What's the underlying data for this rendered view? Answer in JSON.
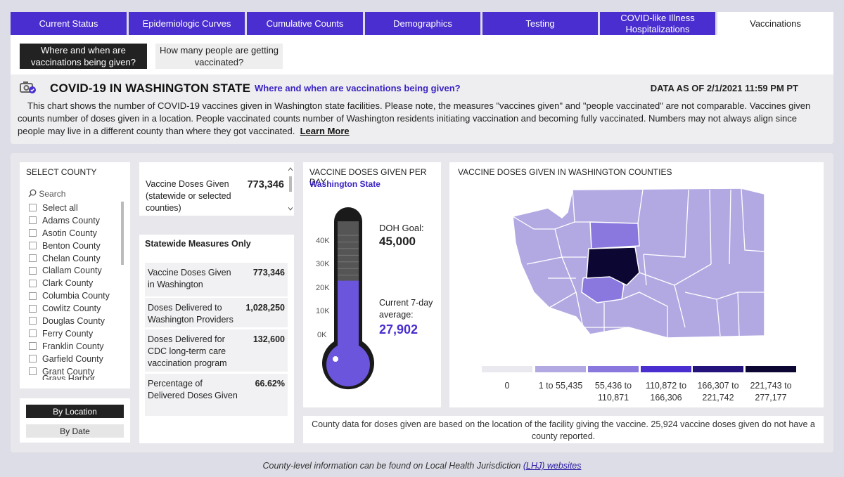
{
  "tabs": [
    {
      "label": "Current Status"
    },
    {
      "label": "Epidemiologic Curves"
    },
    {
      "label": "Cumulative Counts"
    },
    {
      "label": "Demographics"
    },
    {
      "label": "Testing"
    },
    {
      "label": "COVID-like Illness Hospitalizations"
    },
    {
      "label": "Vaccinations"
    }
  ],
  "subnav": {
    "where_label": "Where and when are vaccinations being given?",
    "how_many_label": "How many people are getting vaccinated?"
  },
  "header": {
    "title": "COVID-19 IN WASHINGTON STATE",
    "subtitle": "Where and when are vaccinations being given?",
    "as_of": "DATA AS OF 2/1/2021 11:59 PM PT",
    "description": "This chart shows the number of COVID-19 vaccines given in Washington state facilities. Please note, the measures \"vaccines given\" and \"people vaccinated\" are not comparable. Vaccines given counts number of doses given in a location. People vaccinated counts number of Washington residents initiating vaccination and becoming fully vaccinated. Numbers may not always align since people may live in a different county than where they got vaccinated.",
    "learn_more": "Learn More"
  },
  "county_select": {
    "title": "SELECT COUNTY",
    "search_placeholder": "Search",
    "items": [
      "Select all",
      "Adams County",
      "Asotin County",
      "Benton County",
      "Chelan County",
      "Clallam County",
      "Clark County",
      "Columbia County",
      "Cowlitz County",
      "Douglas County",
      "Ferry County",
      "Franklin County",
      "Garfield County",
      "Grant County",
      "Grays Harbor County"
    ]
  },
  "view_buttons": {
    "by_location": "By Location",
    "by_date": "By Date"
  },
  "doses_given": {
    "label": "Vaccine Doses Given (statewide or selected counties)",
    "value": "773,346"
  },
  "statewide": {
    "title": "Statewide Measures Only",
    "rows": [
      {
        "label": "Vaccine Doses Given in Washington",
        "value": "773,346"
      },
      {
        "label": "Doses Delivered to Washington Providers",
        "value": "1,028,250"
      },
      {
        "label": "Doses Delivered for CDC long-term care vaccination program",
        "value": "132,600"
      },
      {
        "label": "Percentage of Delivered Doses Given",
        "value": "66.62%"
      }
    ]
  },
  "thermometer": {
    "title": "VACCINE DOSES GIVEN PER DAY",
    "subtitle": "Washington State",
    "goal_label": "DOH Goal:",
    "goal_value": "45,000",
    "goal": 45000,
    "avg_label": "Current 7-day average:",
    "avg_value": "27,902",
    "current": 27902,
    "ticks": [
      "40K",
      "30K",
      "20K",
      "10K",
      "0K"
    ],
    "colors": {
      "fill": "#6a55dc",
      "tube": "#1a1a1a",
      "gray": "#555555"
    }
  },
  "map": {
    "title": "VACCINE DOSES GIVEN IN WASHINGTON COUNTIES",
    "legend": [
      {
        "label": "0",
        "color": "#e9e9ef"
      },
      {
        "label": "1 to 55,435",
        "color": "#b3a9e2"
      },
      {
        "label": "55,436 to 110,871",
        "color": "#8a78de"
      },
      {
        "label": "110,872 to 166,306",
        "color": "#4a2ecf"
      },
      {
        "label": "166,307 to 221,742",
        "color": "#24137a"
      },
      {
        "label": "221,743 to 277,177",
        "color": "#0c0633"
      }
    ],
    "note": "County data for doses given are based on the location of the facility giving the vaccine. 25,924 vaccine doses given do not have a county reported."
  },
  "footer": {
    "text": "County-level information can be found on Local Health Jurisdiction",
    "link": "(LHJ) websites"
  }
}
